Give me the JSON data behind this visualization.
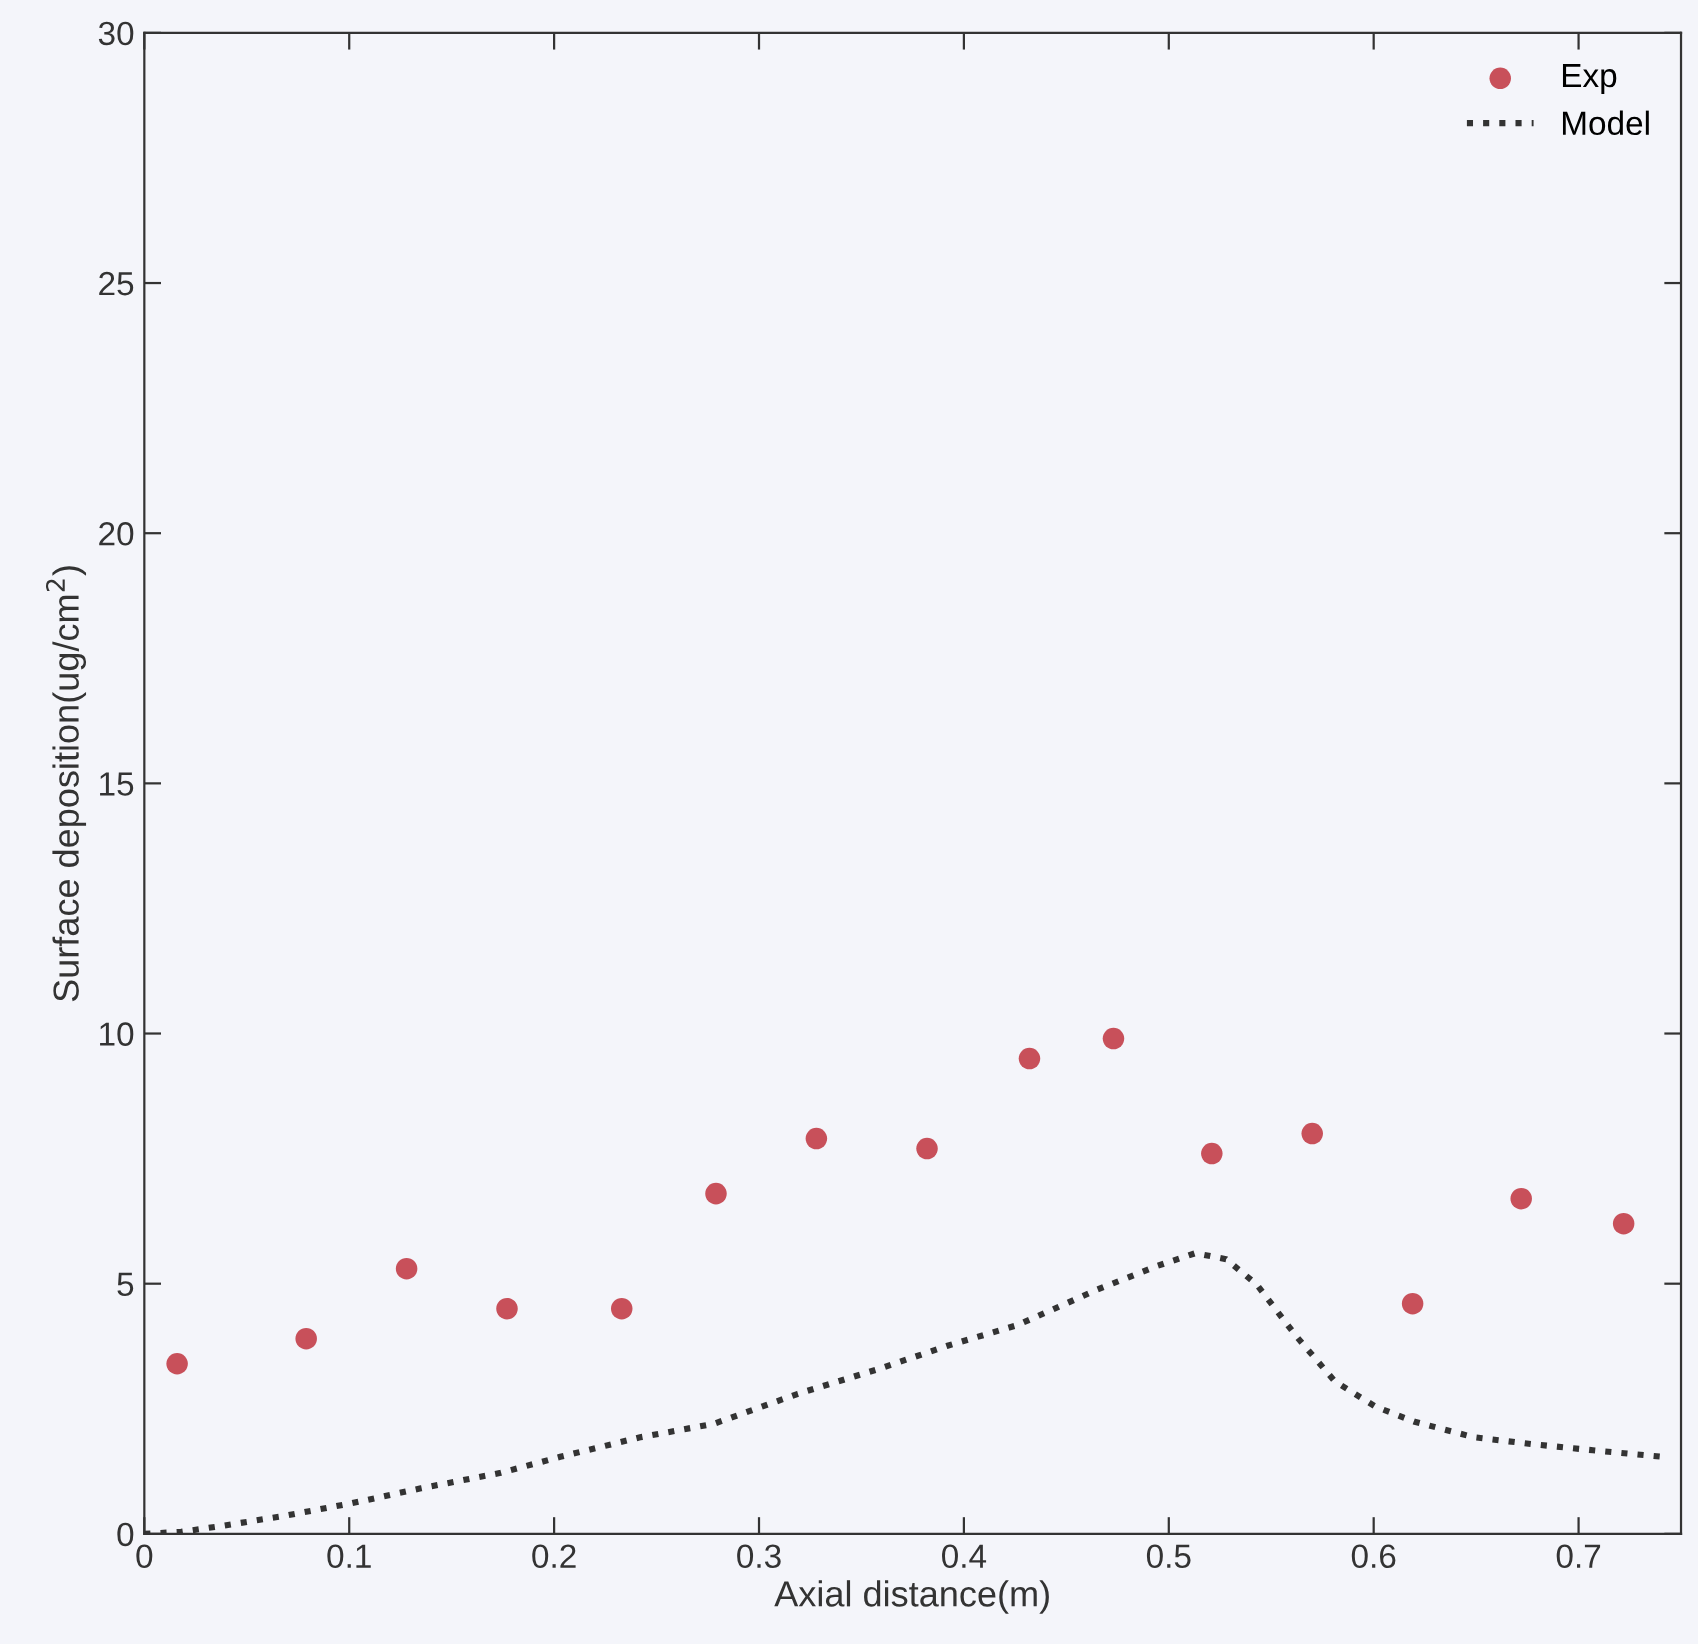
{
  "chart_data": {
    "type": "scatter",
    "xlabel": "Axial distance(m)",
    "ylabel": "Surface deposition(ug/cm$^{2}$)",
    "xlim": [
      0,
      0.75
    ],
    "xticks": [
      0,
      0.1,
      0.2,
      0.3,
      0.4,
      0.5,
      0.6,
      0.7
    ],
    "ylim": [
      0,
      30
    ],
    "yticks": [
      0,
      5,
      10,
      15,
      20,
      25,
      30
    ],
    "grid": false,
    "legend": "top right",
    "series": [
      {
        "name": "Exp",
        "color": "#c8505a",
        "marker": "circle",
        "x": [
          0.016,
          0.079,
          0.128,
          0.177,
          0.233,
          0.279,
          0.328,
          0.382,
          0.432,
          0.473,
          0.521,
          0.57,
          0.619,
          0.672,
          0.722
        ],
        "values": [
          3.4,
          3.9,
          5.3,
          4.5,
          4.5,
          6.8,
          7.9,
          7.7,
          9.5,
          9.9,
          7.6,
          8.0,
          4.6,
          6.7,
          6.2
        ]
      },
      {
        "name": "Model",
        "type": "line",
        "color": "#333333",
        "marker": "none",
        "line_style": "dotted",
        "x": [
          0,
          0.018,
          0.038,
          0.067,
          0.101,
          0.135,
          0.174,
          0.203,
          0.242,
          0.278,
          0.319,
          0.358,
          0.392,
          0.426,
          0.465,
          0.494,
          0.513,
          0.528,
          0.543,
          0.562,
          0.581,
          0.601,
          0.62,
          0.649,
          0.678,
          0.707,
          0.741
        ],
        "values": [
          0,
          0.04,
          0.16,
          0.35,
          0.61,
          0.91,
          1.22,
          1.54,
          1.93,
          2.2,
          2.8,
          3.29,
          3.76,
          4.17,
          4.88,
          5.35,
          5.61,
          5.49,
          4.98,
          3.96,
          3.05,
          2.54,
          2.24,
          1.93,
          1.79,
          1.67,
          1.54
        ]
      }
    ]
  }
}
